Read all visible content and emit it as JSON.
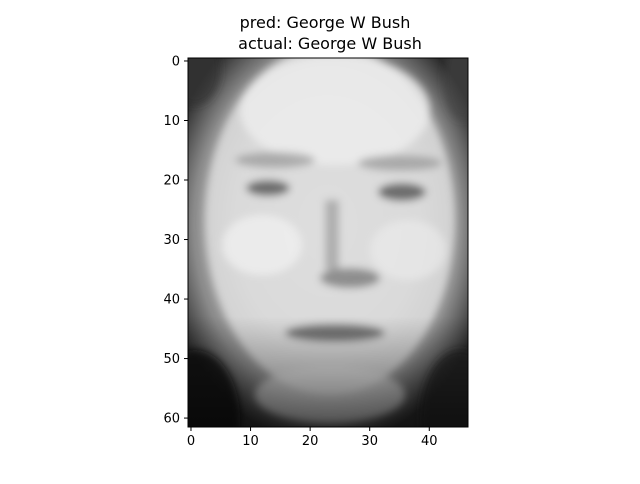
{
  "chart_data": {
    "type": "heatmap",
    "title_line1": "pred: George W Bush",
    "title_line2": "actual: George W Bush",
    "colormap": "gray",
    "xlim": [
      -0.5,
      46.5
    ],
    "ylim": [
      61.5,
      -0.5
    ],
    "grid": false,
    "x_ticks": [
      0,
      10,
      20,
      30,
      40
    ],
    "x_tick_labels": [
      "0",
      "10",
      "20",
      "30",
      "40"
    ],
    "y_ticks": [
      0,
      10,
      20,
      30,
      40,
      50,
      60
    ],
    "y_tick_labels": [
      "0",
      "10",
      "20",
      "30",
      "40",
      "50",
      "60"
    ],
    "image_rows": 62,
    "image_cols": 47
  }
}
